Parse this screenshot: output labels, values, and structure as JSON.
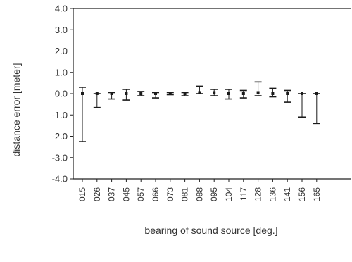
{
  "chart_data": {
    "type": "scatter",
    "xlabel": "bearing of sound source [deg.]",
    "ylabel": "distance error [meter]",
    "ylim": [
      -4.0,
      4.0
    ],
    "yticks": [
      "4.0",
      "3.0",
      "2.0",
      "1.0",
      "0.0",
      "-1.0",
      "-2.0",
      "-3.0",
      "-4.0"
    ],
    "categories": [
      "015",
      "026",
      "037",
      "045",
      "057",
      "066",
      "073",
      "081",
      "088",
      "095",
      "104",
      "117",
      "128",
      "136",
      "141",
      "156",
      "165"
    ],
    "series": [
      {
        "mean": [
          0.0,
          0.0,
          0.0,
          0.0,
          0.0,
          0.0,
          0.0,
          0.0,
          0.05,
          0.05,
          0.0,
          0.0,
          0.05,
          0.0,
          0.0,
          0.0,
          0.0
        ],
        "upper": [
          0.3,
          0.0,
          0.05,
          0.2,
          0.1,
          0.05,
          0.05,
          0.05,
          0.35,
          0.2,
          0.2,
          0.15,
          0.55,
          0.25,
          0.15,
          0.0,
          0.0
        ],
        "lower": [
          -2.25,
          -0.65,
          -0.25,
          -0.3,
          -0.1,
          -0.2,
          -0.05,
          -0.1,
          0.0,
          -0.1,
          -0.25,
          -0.2,
          -0.1,
          -0.15,
          -0.4,
          -1.1,
          -1.4
        ]
      }
    ],
    "grid": false,
    "colors": {
      "marks": "#1a1a1a",
      "axes": "#222222"
    }
  }
}
